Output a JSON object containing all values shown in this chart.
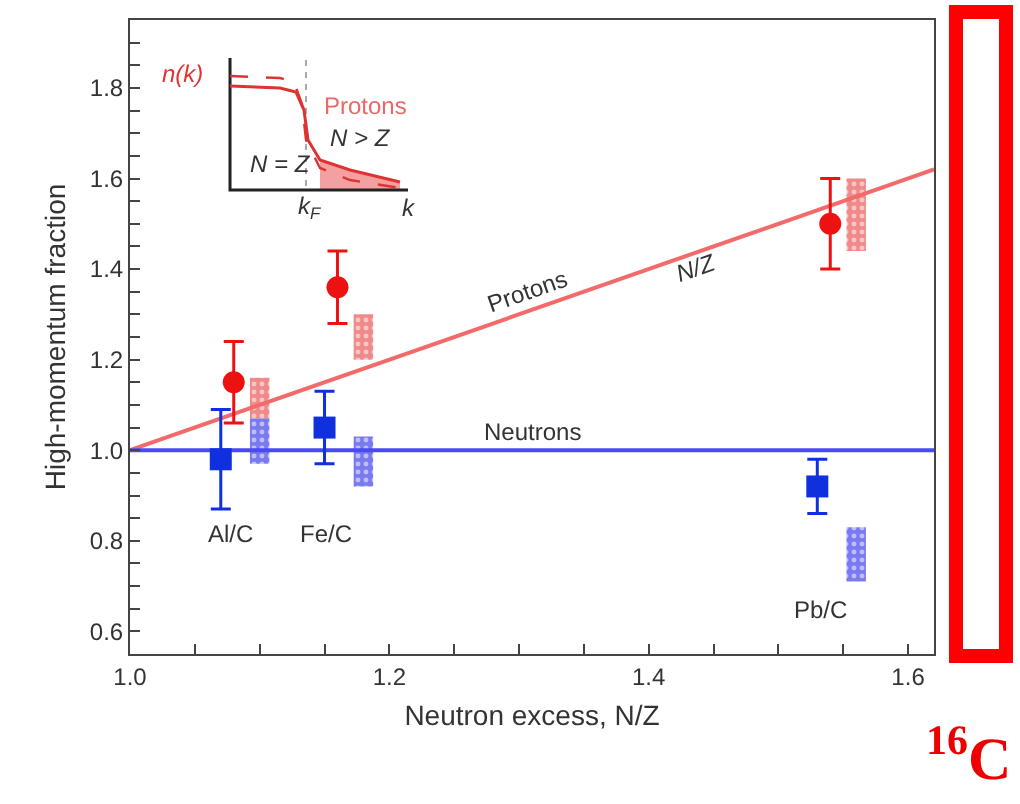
{
  "chart_data": {
    "type": "scatter",
    "xlabel": "Neutron excess, N/Z",
    "ylabel": "High-momentum fraction",
    "xlim": [
      1.0,
      1.62
    ],
    "ylim": [
      0.55,
      1.95
    ],
    "xticks": [
      {
        "value": 1.0,
        "label": "1.0"
      },
      {
        "value": 1.05,
        "label": null
      },
      {
        "value": 1.1,
        "label": null
      },
      {
        "value": 1.15,
        "label": null
      },
      {
        "value": 1.2,
        "label": "1.2"
      },
      {
        "value": 1.25,
        "label": null
      },
      {
        "value": 1.3,
        "label": null
      },
      {
        "value": 1.35,
        "label": null
      },
      {
        "value": 1.4,
        "label": "1.4"
      },
      {
        "value": 1.45,
        "label": null
      },
      {
        "value": 1.5,
        "label": null
      },
      {
        "value": 1.55,
        "label": null
      },
      {
        "value": 1.6,
        "label": "1.6"
      }
    ],
    "yticks": [
      {
        "value": 0.55,
        "label": null
      },
      0.6,
      {
        "value": 0.65,
        "label": null
      },
      {
        "value": 0.7,
        "label": null
      },
      {
        "value": 0.75,
        "label": null
      },
      0.8,
      {
        "value": 0.85,
        "label": null
      },
      {
        "value": 0.9,
        "label": null
      },
      {
        "value": 0.95,
        "label": null
      },
      {
        "value": 1.0,
        "label": "1.0"
      },
      {
        "value": 1.05,
        "label": null
      },
      {
        "value": 1.1,
        "label": null
      },
      {
        "value": 1.15,
        "label": null
      },
      1.2,
      {
        "value": 1.25,
        "label": null
      },
      {
        "value": 1.3,
        "label": null
      },
      {
        "value": 1.35,
        "label": null
      },
      1.4,
      {
        "value": 1.45,
        "label": null
      },
      {
        "value": 1.5,
        "label": null
      },
      {
        "value": 1.55,
        "label": null
      },
      1.6,
      {
        "value": 1.65,
        "label": null
      },
      {
        "value": 1.7,
        "label": null
      },
      {
        "value": 1.75,
        "label": null
      },
      1.8,
      {
        "value": 1.85,
        "label": null
      },
      {
        "value": 1.9,
        "label": null
      }
    ],
    "series": [
      {
        "type": "bar",
        "color": "#f08a8a",
        "x": [
          1.1,
          1.18,
          1.56
        ],
        "base": [
          1.07,
          1.2,
          1.44
        ],
        "values": [
          0.09,
          0.1,
          0.16
        ]
      },
      {
        "type": "bar",
        "color": "#7a7af0",
        "x": [
          1.1,
          1.18,
          1.56
        ],
        "base": [
          0.97,
          0.92,
          0.71
        ],
        "values": [
          0.1,
          0.11,
          0.12
        ]
      },
      {
        "type": "line",
        "name": "Protons",
        "color": "#f26a6a",
        "x": [
          1.0,
          1.62
        ],
        "values": [
          1.0,
          1.62
        ],
        "marker": "none"
      },
      {
        "type": "line",
        "name": "Neutrons",
        "color": "#4a4af5",
        "x": [
          1.0,
          1.62
        ],
        "values": [
          1.0,
          1.0
        ],
        "marker": "none"
      },
      {
        "color": "#ee1111",
        "marker": "circle",
        "x": [
          1.08,
          1.16,
          1.54
        ],
        "values": [
          1.15,
          1.36,
          1.5
        ],
        "errors": [
          [
            1.06,
            1.24
          ],
          [
            1.28,
            1.44
          ],
          [
            1.4,
            1.6
          ]
        ]
      },
      {
        "color": "#1030e0",
        "marker": "square",
        "x": [
          1.07,
          1.15,
          1.53
        ],
        "values": [
          0.98,
          1.05,
          0.92
        ],
        "errors": [
          [
            0.87,
            1.09
          ],
          [
            0.97,
            1.13
          ],
          [
            0.86,
            0.98
          ]
        ]
      }
    ],
    "annotations": [
      "N/Z",
      "Al/C",
      "Fe/C",
      "Pb/C",
      "n(k)",
      "Protons",
      "N > Z",
      "N = Z",
      "k$_{F}$",
      "k",
      "$^{16}$C"
    ]
  }
}
